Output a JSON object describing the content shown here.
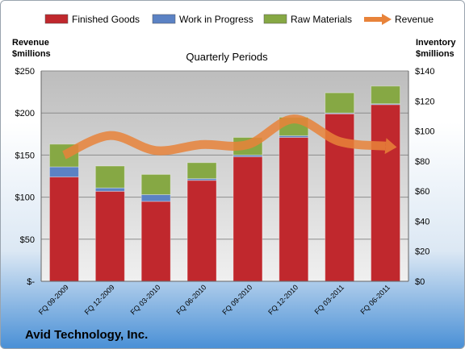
{
  "chart_data": {
    "type": "bar",
    "subtitle": "Quarterly Periods",
    "company": "Avid Technology, Inc.",
    "left_axis_title": [
      "Revenue",
      "$millions"
    ],
    "right_axis_title": [
      "Inventory",
      "$millions"
    ],
    "left_ticks": [
      "$-",
      "$50",
      "$100",
      "$150",
      "$200",
      "$250"
    ],
    "right_ticks": [
      "$0",
      "$20",
      "$40",
      "$60",
      "$80",
      "$100",
      "$120",
      "$140"
    ],
    "ylim_left": [
      0,
      250
    ],
    "ylim_right": [
      0,
      140
    ],
    "categories": [
      "FQ 09-2009",
      "FQ 12-2009",
      "FQ 03-2010",
      "FQ 06-2010",
      "FQ 09-2010",
      "FQ 12-2010",
      "FQ 03-2011",
      "FQ 06-2011"
    ],
    "series": [
      {
        "name": "Finished Goods",
        "axis": "left",
        "stacked": true,
        "color": "#c0282d",
        "values": [
          124,
          107,
          95,
          120,
          148,
          171,
          199,
          210
        ]
      },
      {
        "name": "Work in Progress",
        "axis": "left",
        "stacked": true,
        "color": "#5b82c4",
        "values": [
          12,
          4,
          8,
          2,
          2,
          2,
          1,
          1
        ]
      },
      {
        "name": "Raw Materials",
        "axis": "left",
        "stacked": true,
        "color": "#86a844",
        "values": [
          27,
          26,
          24,
          19,
          21,
          22,
          24,
          21
        ]
      },
      {
        "name": "Revenue",
        "axis": "right",
        "type": "line",
        "color": "#e8833a",
        "values": [
          84,
          97,
          87,
          91,
          91,
          108,
          93,
          90
        ]
      }
    ],
    "legend_position": "top",
    "grid": true
  }
}
